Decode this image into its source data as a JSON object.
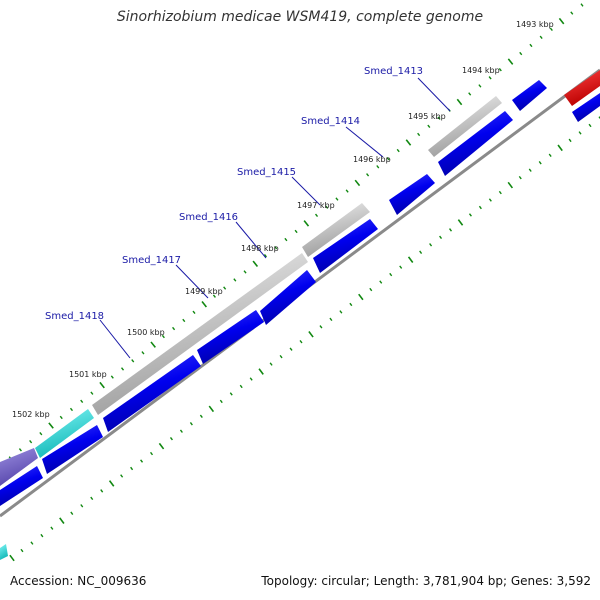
{
  "title": "Sinorhizobium medicae WSM419, complete genome",
  "footer": {
    "accession": "Accession: NC_009636",
    "summary": "Topology: circular; Length: 3,781,904 bp; Genes: 3,592"
  },
  "colors": {
    "forward_feature": "#c8c8c8",
    "reverse_gene": "#0000ee",
    "highlight_red": "#ee0000",
    "cyan_feature": "#22dddd",
    "purple_feature": "#7766cc",
    "backbone": "#888888",
    "tick": "#118811",
    "label": "#1a1aa6"
  },
  "gene_labels": [
    "Smed_1413",
    "Smed_1414",
    "Smed_1415",
    "Smed_1416",
    "Smed_1417",
    "Smed_1418"
  ],
  "kbp_labels": [
    "1493 kbp",
    "1494 kbp",
    "1495 kbp",
    "1496 kbp",
    "1497 kbp",
    "1498 kbp",
    "1499 kbp",
    "1500 kbp",
    "1501 kbp",
    "1502 kbp"
  ]
}
